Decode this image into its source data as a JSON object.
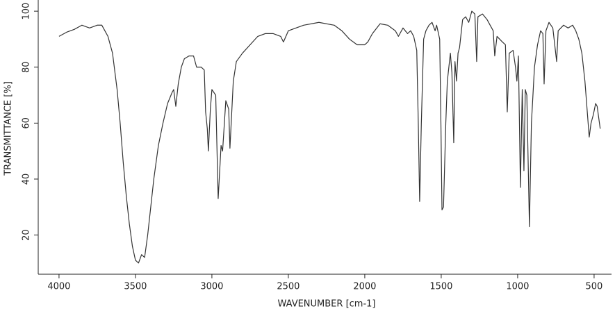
{
  "chart_data": {
    "type": "line",
    "x_label": "WAVENUMBER [cm-1]",
    "y_label": "TRANSMITTANCE [%]",
    "xlim": [
      4136,
      386
    ],
    "ylim": [
      6,
      104
    ],
    "xticks": [
      4000,
      3500,
      3000,
      2500,
      2000,
      1500,
      1000,
      500
    ],
    "yticks": [
      20,
      40,
      60,
      80,
      100
    ],
    "color": "#333333",
    "x": [
      4000,
      3950,
      3900,
      3850,
      3800,
      3750,
      3720,
      3700,
      3680,
      3650,
      3620,
      3600,
      3580,
      3560,
      3540,
      3520,
      3500,
      3480,
      3460,
      3440,
      3420,
      3400,
      3380,
      3350,
      3320,
      3290,
      3260,
      3250,
      3236,
      3220,
      3200,
      3180,
      3150,
      3120,
      3100,
      3070,
      3050,
      3041,
      3030,
      3023,
      3010,
      3000,
      2975,
      2959,
      2940,
      2930,
      2909,
      2890,
      2882,
      2860,
      2840,
      2800,
      2750,
      2700,
      2650,
      2600,
      2550,
      2532,
      2500,
      2400,
      2300,
      2200,
      2150,
      2100,
      2050,
      2000,
      1980,
      1950,
      1900,
      1850,
      1800,
      1780,
      1750,
      1720,
      1700,
      1680,
      1660,
      1650,
      1641,
      1630,
      1615,
      1600,
      1580,
      1560,
      1540,
      1530,
      1510,
      1502,
      1495,
      1485,
      1470,
      1460,
      1440,
      1430,
      1418,
      1410,
      1400,
      1390,
      1380,
      1360,
      1340,
      1320,
      1300,
      1280,
      1268,
      1260,
      1230,
      1200,
      1180,
      1160,
      1150,
      1135,
      1100,
      1080,
      1068,
      1055,
      1030,
      1014,
      1005,
      995,
      982,
      970,
      959,
      950,
      940,
      923,
      910,
      890,
      870,
      850,
      835,
      827,
      815,
      795,
      770,
      745,
      735,
      700,
      670,
      640,
      620,
      600,
      580,
      560,
      532,
      520,
      505,
      490,
      480,
      460
    ],
    "values": [
      91,
      92.5,
      93.5,
      95,
      94,
      95,
      95,
      93,
      91,
      85,
      72,
      60,
      46,
      34,
      24,
      16,
      11,
      10,
      13,
      12,
      20,
      30,
      40,
      52,
      60,
      67,
      71,
      72,
      66,
      74,
      80,
      83,
      84,
      84,
      80,
      80,
      79,
      64,
      58,
      50,
      65,
      72,
      70,
      33,
      52,
      50,
      68,
      65,
      51,
      75,
      82,
      85,
      88,
      91,
      92,
      92,
      91,
      89,
      93,
      95,
      96,
      95,
      93,
      90,
      88,
      88,
      89,
      92,
      95.5,
      95,
      93,
      91,
      94,
      92,
      93,
      91,
      86,
      60,
      32,
      60,
      90,
      93,
      95,
      96,
      93,
      95,
      90,
      60,
      29,
      30,
      60,
      75,
      85,
      78,
      53,
      82,
      75,
      85,
      87,
      97,
      98,
      96,
      100,
      99,
      82,
      98,
      99,
      97,
      95,
      93,
      84,
      91,
      89,
      88,
      64,
      85,
      86,
      80,
      75,
      84,
      37,
      72,
      43,
      72,
      70,
      23,
      60,
      80,
      88,
      93,
      92,
      74,
      93,
      96,
      94,
      82,
      93,
      95,
      94,
      95,
      93,
      90,
      85,
      75,
      55,
      60,
      63,
      67,
      66,
      58
    ]
  }
}
